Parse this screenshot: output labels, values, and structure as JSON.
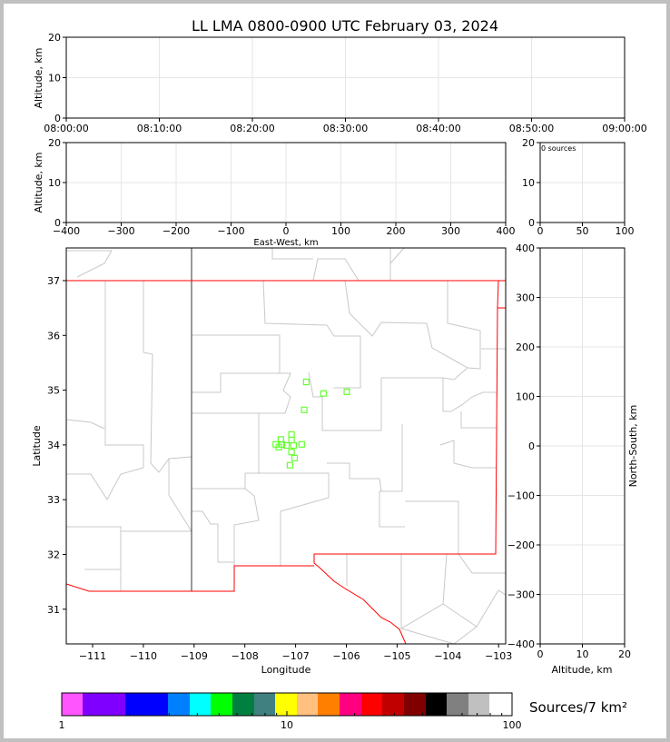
{
  "title": "LL LMA 0800-0900 UTC February 03, 2024",
  "chart_data": [
    {
      "type": "scatter",
      "panel": "altitude-vs-time",
      "ylabel": "Altitude, km",
      "xlabel": "",
      "ylim": [
        0,
        20
      ],
      "yticks": [
        "0",
        "10",
        "20"
      ],
      "xticks": [
        "08:00:00",
        "08:10:00",
        "08:20:00",
        "08:30:00",
        "08:40:00",
        "08:50:00",
        "09:00:00"
      ],
      "grid": true,
      "points": []
    },
    {
      "type": "scatter",
      "panel": "altitude-vs-east-west",
      "ylabel": "Altitude, km",
      "xlabel": "East-West, km",
      "xlim": [
        -400,
        400
      ],
      "ylim": [
        0,
        20
      ],
      "xticks": [
        "−400",
        "−300",
        "−200",
        "−100",
        "0",
        "100",
        "200",
        "300",
        "400"
      ],
      "yticks": [
        "0",
        "10",
        "20"
      ],
      "grid": true,
      "points": []
    },
    {
      "type": "bar",
      "panel": "altitude-histogram",
      "annotation": "0 sources",
      "xlim": [
        0,
        100
      ],
      "ylim": [
        0,
        20
      ],
      "xticks": [
        "0",
        "50",
        "100"
      ],
      "yticks": [
        "0",
        "10",
        "20"
      ],
      "grid": true,
      "values": []
    },
    {
      "type": "scatter",
      "panel": "plan-view",
      "xlabel": "Longitude",
      "ylabel": "Latitude",
      "xlim": [
        -111.52,
        -102.95
      ],
      "ylim": [
        30.38,
        37.6
      ],
      "xticks": [
        -111,
        -110,
        -109,
        -108,
        -107,
        -106,
        -105,
        -104,
        -103
      ],
      "yticks": [
        31,
        32,
        33,
        34,
        35,
        36,
        37
      ],
      "marker": "open-square",
      "marker_color": "#66ff33",
      "points": [
        {
          "lon": -106.79,
          "lat": 35.15
        },
        {
          "lon": -106.45,
          "lat": 34.94
        },
        {
          "lon": -105.99,
          "lat": 34.97
        },
        {
          "lon": -106.83,
          "lat": 34.64
        },
        {
          "lon": -107.08,
          "lat": 34.19
        },
        {
          "lon": -107.29,
          "lat": 34.1
        },
        {
          "lon": -107.08,
          "lat": 34.09
        },
        {
          "lon": -107.39,
          "lat": 34.01
        },
        {
          "lon": -107.27,
          "lat": 34.01
        },
        {
          "lon": -107.33,
          "lat": 33.96
        },
        {
          "lon": -107.18,
          "lat": 33.99
        },
        {
          "lon": -107.04,
          "lat": 33.99
        },
        {
          "lon": -106.88,
          "lat": 34.01
        },
        {
          "lon": -107.08,
          "lat": 33.87
        },
        {
          "lon": -107.02,
          "lat": 33.76
        },
        {
          "lon": -107.11,
          "lat": 33.63
        }
      ]
    },
    {
      "type": "scatter",
      "panel": "north-south-vs-altitude",
      "xlabel": "Altitude, km",
      "ylabel": "North-South, km",
      "xlim": [
        0,
        20
      ],
      "ylim": [
        -400,
        400
      ],
      "xticks": [
        "0",
        "10",
        "20"
      ],
      "yticks": [
        "−400",
        "−300",
        "−200",
        "−100",
        "0",
        "100",
        "200",
        "300",
        "400"
      ],
      "grid": true,
      "points": []
    }
  ],
  "colorbar": {
    "label": "Sources/7 km²",
    "ticks": [
      "1",
      "10",
      "100"
    ],
    "scale": "log",
    "colors": [
      "#ff55ff",
      "#8000ff",
      "#0000ff",
      "#0080ff",
      "#00ffff",
      "#00ff00",
      "#008040",
      "#408080",
      "#ffff00",
      "#ffc080",
      "#ff8000",
      "#ff0080",
      "#ff0000",
      "#c00000",
      "#800000",
      "#000000",
      "#808080",
      "#c0c0c0",
      "#ffffff"
    ]
  },
  "colors": {
    "state_border": "#ff0000",
    "county_lines": "#c8c8c8"
  }
}
